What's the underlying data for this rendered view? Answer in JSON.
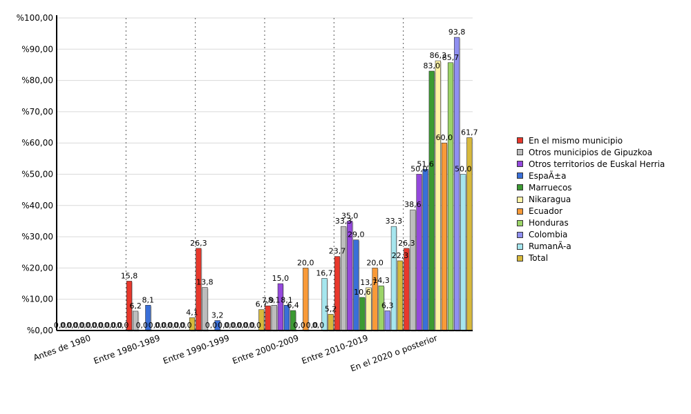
{
  "chart_data": {
    "type": "bar",
    "title": "",
    "xlabel": "",
    "ylabel": "",
    "ylim": [
      0,
      100
    ],
    "yticks": [
      "%0,00",
      "%10,00",
      "%20,00",
      "%30,00",
      "%40,00",
      "%50,00",
      "%60,00",
      "%70,00",
      "%80,00",
      "%90,00",
      "%100,00"
    ],
    "grid": {
      "horizontal": true,
      "vertical_dotted": true
    },
    "legend_position": "right",
    "categories": [
      "Antes de 1980",
      "Entre 1980-1989",
      "Entre 1990-1999",
      "Entre 2000-2009",
      "Entre 2010-2019",
      "En el 2020 o posterior"
    ],
    "series": [
      {
        "name": "En el mismo municipio",
        "color": "#e8382c",
        "values": [
          0,
          15.8,
          26.3,
          7.9,
          23.7,
          26.3
        ],
        "labels": [
          "0,0",
          "15,8",
          "26,3",
          "7,9",
          "23,7",
          "26,3"
        ]
      },
      {
        "name": "Otros municipios de Gipuzkoa",
        "color": "#bdbdbd",
        "values": [
          0,
          6.2,
          13.8,
          8.1,
          33.3,
          38.6
        ],
        "labels": [
          "0,0",
          "6,2",
          "13,8",
          "8,1",
          "33,3",
          "38,6"
        ]
      },
      {
        "name": "Otros territorios de Euskal Herria",
        "color": "#9448dc",
        "values": [
          0,
          0,
          0,
          15.0,
          35.0,
          50.0
        ],
        "labels": [
          "0,0",
          "0,0",
          "0,0",
          "15,0",
          "35,0",
          "50,0"
        ]
      },
      {
        "name": "EspaÃ±a",
        "color": "#3a6fd8",
        "values": [
          0,
          8.1,
          3.2,
          8.1,
          29.0,
          51.6
        ],
        "labels": [
          "0,0",
          "8,1",
          "3,2",
          "8,1",
          "29,0",
          "51,6"
        ]
      },
      {
        "name": "Marruecos",
        "color": "#3c9a32",
        "values": [
          0,
          0,
          0,
          6.4,
          10.6,
          83.0
        ],
        "labels": [
          "0,0",
          "0,0",
          "0,0",
          "6,4",
          "10,6",
          "83,0"
        ]
      },
      {
        "name": "Nikaragua",
        "color": "#fff3a6",
        "values": [
          0,
          0,
          0,
          0,
          13.7,
          86.3
        ],
        "labels": [
          "0,0",
          "0,0",
          "0,0",
          "0,0",
          "13,7",
          "86,3"
        ]
      },
      {
        "name": "Ecuador",
        "color": "#f99a38",
        "values": [
          0,
          0,
          0,
          20.0,
          20.0,
          60.0
        ],
        "labels": [
          "0,0",
          "0,0",
          "0,0",
          "20,0",
          "20,0",
          "60,0"
        ]
      },
      {
        "name": "Honduras",
        "color": "#9bd468",
        "values": [
          0,
          0,
          0,
          0,
          14.3,
          85.7
        ],
        "labels": [
          "0,0",
          "0,0",
          "0,0",
          "0,0",
          "14,3",
          "85,7"
        ]
      },
      {
        "name": "Colombia",
        "color": "#8f8ff0",
        "values": [
          0,
          0,
          0,
          0,
          6.3,
          93.8
        ],
        "labels": [
          "0,0",
          "0,0",
          "0,0",
          "0,0",
          "6,3",
          "93,8"
        ]
      },
      {
        "name": "RumanÃ-a",
        "color": "#a6e6ee",
        "values": [
          0,
          0,
          0,
          16.7,
          33.3,
          50.0
        ],
        "labels": [
          "0,0",
          "0,0",
          "0,0",
          "16,7",
          "33,3",
          "50,0"
        ]
      },
      {
        "name": "Total",
        "color": "#d7b93c",
        "values": [
          0,
          4.1,
          6.7,
          5.2,
          22.3,
          61.7
        ],
        "labels": [
          "0,0",
          "4,1",
          "6,7",
          "5,2",
          "22,3",
          "61,7"
        ]
      }
    ]
  }
}
